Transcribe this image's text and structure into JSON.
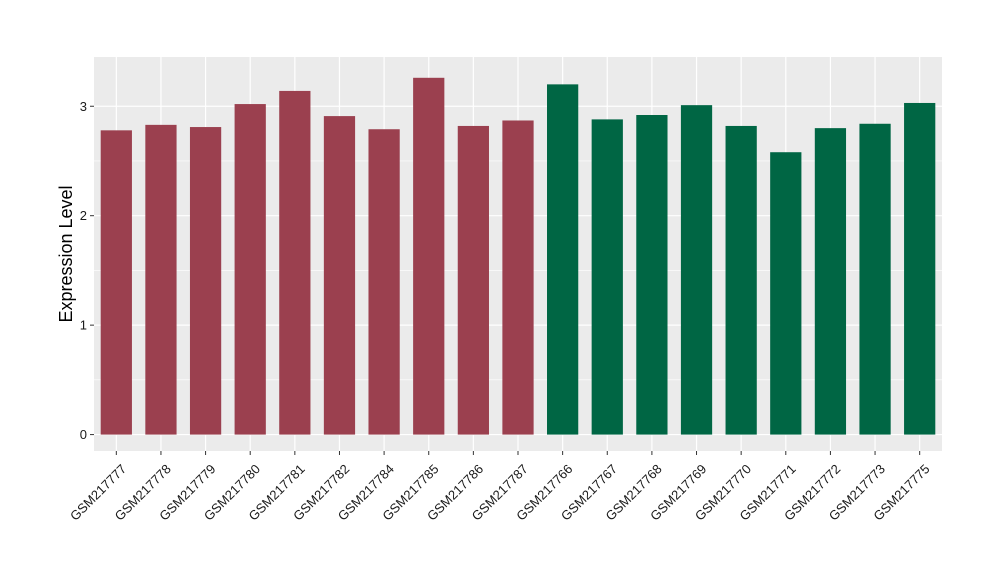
{
  "chart_data": {
    "type": "bar",
    "title": "",
    "xlabel": "",
    "ylabel": "Expression Level",
    "ylim": [
      -0.15,
      3.45
    ],
    "yticks": [
      0,
      1,
      2,
      3
    ],
    "grid": true,
    "legend": "none",
    "categories": [
      "GSM217777",
      "GSM217778",
      "GSM217779",
      "GSM217780",
      "GSM217781",
      "GSM217782",
      "GSM217784",
      "GSM217785",
      "GSM217786",
      "GSM217787",
      "GSM217766",
      "GSM217767",
      "GSM217768",
      "GSM217769",
      "GSM217770",
      "GSM217771",
      "GSM217772",
      "GSM217773",
      "GSM217775"
    ],
    "values": [
      2.78,
      2.83,
      2.81,
      3.02,
      3.14,
      2.91,
      2.79,
      3.26,
      2.82,
      2.87,
      3.2,
      2.88,
      2.92,
      3.01,
      2.82,
      2.58,
      2.8,
      2.84,
      3.03
    ],
    "groups": [
      "g1",
      "g1",
      "g1",
      "g1",
      "g1",
      "g1",
      "g1",
      "g1",
      "g1",
      "g1",
      "g2",
      "g2",
      "g2",
      "g2",
      "g2",
      "g2",
      "g2",
      "g2",
      "g2"
    ],
    "colors": {
      "g1": "#9b404f",
      "g2": "#006644"
    },
    "panel_background": "#ebebeb",
    "gridline_color": "#ffffff"
  }
}
